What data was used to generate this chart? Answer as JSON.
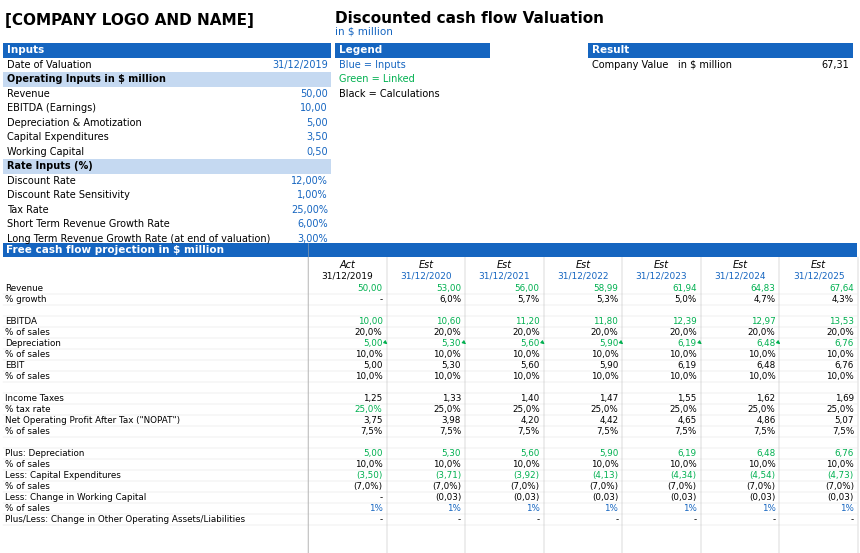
{
  "title": "Discounted cash flow Valuation",
  "subtitle": "in $ million",
  "company_logo": "[COMPANY LOGO AND NAME]",
  "blue_header": "#1565C0",
  "light_blue_row": "#C5D9F1",
  "white": "#FFFFFF",
  "black": "#000000",
  "blue_text": "#1565C0",
  "green_text": "#00B050",
  "inputs_section": {
    "header": "Inputs",
    "rows": [
      {
        "label": "Date of Valuation",
        "value": "31/12/2019",
        "color": "blue"
      },
      {
        "label": "Operating Inputs in $ million",
        "value": "",
        "color": "subheader"
      },
      {
        "label": "Revenue",
        "value": "50,00",
        "color": "blue"
      },
      {
        "label": "EBITDA (Earnings)",
        "value": "10,00",
        "color": "blue"
      },
      {
        "label": "Depreciation & Amotization",
        "value": "5,00",
        "color": "blue"
      },
      {
        "label": "Capital Expenditures",
        "value": "3,50",
        "color": "blue"
      },
      {
        "label": "Working Capital",
        "value": "0,50",
        "color": "blue"
      },
      {
        "label": "Rate Inputs (%)",
        "value": "",
        "color": "subheader"
      },
      {
        "label": "Discount Rate",
        "value": "12,00%",
        "color": "blue"
      },
      {
        "label": "Discount Rate Sensitivity",
        "value": "1,00%",
        "color": "blue"
      },
      {
        "label": "Tax Rate",
        "value": "25,00%",
        "color": "blue"
      },
      {
        "label": "Short Term Revenue Growth Rate",
        "value": "6,00%",
        "color": "blue"
      },
      {
        "label": "Long Term Revenue Growth Rate (at end of valuation)",
        "value": "3,00%",
        "color": "blue"
      }
    ]
  },
  "legend_section": {
    "header": "Legend",
    "rows": [
      {
        "label": "Blue = Inputs",
        "color": "blue"
      },
      {
        "label": "Green = Linked",
        "color": "green"
      },
      {
        "label": "Black = Calculations",
        "color": "black"
      }
    ]
  },
  "result_section": {
    "header": "Result",
    "label": "Company Value",
    "unit": "in $ million",
    "value": "67,31"
  },
  "free_cash_flow_header": "Free cash flow projection in $ million",
  "columns": [
    {
      "period": "Act",
      "date": "31/12/2019"
    },
    {
      "period": "Est",
      "date": "31/12/2020"
    },
    {
      "period": "Est",
      "date": "31/12/2021"
    },
    {
      "period": "Est",
      "date": "31/12/2022"
    },
    {
      "period": "Est",
      "date": "31/12/2023"
    },
    {
      "period": "Est",
      "date": "31/12/2024"
    },
    {
      "period": "Est",
      "date": "31/12/2025"
    }
  ],
  "table_rows": [
    {
      "label": "Revenue",
      "values": [
        "50,00",
        "53,00",
        "56,00",
        "58,99",
        "61,94",
        "64,83",
        "67,64"
      ],
      "color": "green",
      "first_color": "green"
    },
    {
      "label": "% growth",
      "values": [
        "-",
        "6,0%",
        "5,7%",
        "5,3%",
        "5,0%",
        "4,7%",
        "4,3%"
      ],
      "color": "black",
      "first_color": "black"
    },
    {
      "label": "",
      "values": [
        "",
        "",
        "",
        "",
        "",
        "",
        ""
      ],
      "color": "black",
      "first_color": "black"
    },
    {
      "label": "EBITDA",
      "values": [
        "10,00",
        "10,60",
        "11,20",
        "11,80",
        "12,39",
        "12,97",
        "13,53"
      ],
      "color": "green",
      "first_color": "green"
    },
    {
      "label": "% of sales",
      "values": [
        "20,0%",
        "20,0%",
        "20,0%",
        "20,0%",
        "20,0%",
        "20,0%",
        "20,0%"
      ],
      "color": "black",
      "first_color": "black"
    },
    {
      "label": "Depreciation",
      "values": [
        "5,00",
        "5,30",
        "5,60",
        "5,90",
        "6,19",
        "6,48",
        "6,76"
      ],
      "color": "green",
      "first_color": "green",
      "has_arrow": true
    },
    {
      "label": "% of sales",
      "values": [
        "10,0%",
        "10,0%",
        "10,0%",
        "10,0%",
        "10,0%",
        "10,0%",
        "10,0%"
      ],
      "color": "black",
      "first_color": "black"
    },
    {
      "label": "EBIT",
      "values": [
        "5,00",
        "5,30",
        "5,60",
        "5,90",
        "6,19",
        "6,48",
        "6,76"
      ],
      "color": "black",
      "first_color": "black"
    },
    {
      "label": "% of sales",
      "values": [
        "10,0%",
        "10,0%",
        "10,0%",
        "10,0%",
        "10,0%",
        "10,0%",
        "10,0%"
      ],
      "color": "black",
      "first_color": "black"
    },
    {
      "label": "",
      "values": [
        "",
        "",
        "",
        "",
        "",
        "",
        ""
      ],
      "color": "black",
      "first_color": "black"
    },
    {
      "label": "Income Taxes",
      "values": [
        "1,25",
        "1,33",
        "1,40",
        "1,47",
        "1,55",
        "1,62",
        "1,69"
      ],
      "color": "black",
      "first_color": "black"
    },
    {
      "label": "% tax rate",
      "values": [
        "25,0%",
        "25,0%",
        "25,0%",
        "25,0%",
        "25,0%",
        "25,0%",
        "25,0%"
      ],
      "color": "black",
      "first_color": "green"
    },
    {
      "label": "Net Operating Profit After Tax (\"NOPAT\")",
      "values": [
        "3,75",
        "3,98",
        "4,20",
        "4,42",
        "4,65",
        "4,86",
        "5,07"
      ],
      "color": "black",
      "first_color": "black"
    },
    {
      "label": "% of sales",
      "values": [
        "7,5%",
        "7,5%",
        "7,5%",
        "7,5%",
        "7,5%",
        "7,5%",
        "7,5%"
      ],
      "color": "black",
      "first_color": "black"
    },
    {
      "label": "",
      "values": [
        "",
        "",
        "",
        "",
        "",
        "",
        ""
      ],
      "color": "black",
      "first_color": "black"
    },
    {
      "label": "Plus: Depreciation",
      "values": [
        "5,00",
        "5,30",
        "5,60",
        "5,90",
        "6,19",
        "6,48",
        "6,76"
      ],
      "color": "green",
      "first_color": "green"
    },
    {
      "label": "% of sales",
      "values": [
        "10,0%",
        "10,0%",
        "10,0%",
        "10,0%",
        "10,0%",
        "10,0%",
        "10,0%"
      ],
      "color": "black",
      "first_color": "black"
    },
    {
      "label": "Less: Capital Expenditures",
      "values": [
        "(3,50)",
        "(3,71)",
        "(3,92)",
        "(4,13)",
        "(4,34)",
        "(4,54)",
        "(4,73)"
      ],
      "color": "green",
      "first_color": "green"
    },
    {
      "label": "% of sales",
      "values": [
        "(7,0%)",
        "(7,0%)",
        "(7,0%)",
        "(7,0%)",
        "(7,0%)",
        "(7,0%)",
        "(7,0%)"
      ],
      "color": "black",
      "first_color": "black"
    },
    {
      "label": "Less: Change in Working Capital",
      "values": [
        "-",
        "(0,03)",
        "(0,03)",
        "(0,03)",
        "(0,03)",
        "(0,03)",
        "(0,03)"
      ],
      "color": "black",
      "first_color": "black"
    },
    {
      "label": "% of sales",
      "values": [
        "1%",
        "1%",
        "1%",
        "1%",
        "1%",
        "1%",
        "1%"
      ],
      "color": "blue",
      "first_color": "blue"
    },
    {
      "label": "Plus/Less: Change in Other Operating Assets/Liabilities",
      "values": [
        "-",
        "-",
        "-",
        "-",
        "-",
        "-",
        "-"
      ],
      "color": "black",
      "first_color": "black"
    }
  ]
}
